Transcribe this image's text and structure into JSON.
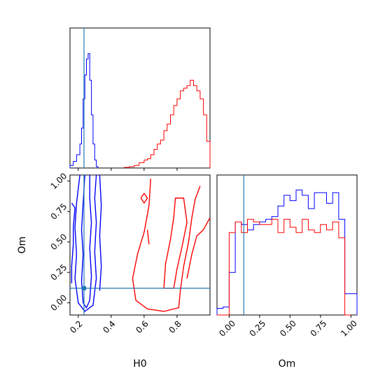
{
  "colors": {
    "blue": "#0000ff",
    "red": "#ff0000",
    "truth": "#1f77b4",
    "axis": "#000000"
  },
  "chart_data": [
    {
      "type": "histogram",
      "panel": "H0 marginal",
      "xlim": [
        0.15,
        1.0
      ],
      "series": [
        {
          "color": "blue",
          "bin_edges": [
            0.15,
            0.17,
            0.19,
            0.21,
            0.22,
            0.23,
            0.24,
            0.25,
            0.26,
            0.27,
            0.28,
            0.29,
            0.3,
            0.31,
            0.32
          ],
          "heights": [
            0.02,
            0.05,
            0.1,
            0.18,
            0.3,
            0.52,
            0.7,
            0.82,
            0.86,
            0.66,
            0.4,
            0.18,
            0.06,
            0.01
          ]
        },
        {
          "color": "red",
          "bin_edges": [
            0.48,
            0.51,
            0.54,
            0.57,
            0.6,
            0.62,
            0.64,
            0.66,
            0.68,
            0.7,
            0.72,
            0.74,
            0.76,
            0.78,
            0.8,
            0.82,
            0.84,
            0.86,
            0.88,
            0.9,
            0.92,
            0.94,
            0.96,
            0.98,
            1.0
          ],
          "heights": [
            0.005,
            0.01,
            0.02,
            0.04,
            0.06,
            0.07,
            0.1,
            0.14,
            0.18,
            0.21,
            0.28,
            0.33,
            0.4,
            0.47,
            0.52,
            0.58,
            0.6,
            0.62,
            0.66,
            0.62,
            0.58,
            0.52,
            0.4,
            0.2
          ]
        }
      ],
      "truth_x": 0.235,
      "xticks": [
        0.2,
        0.4,
        0.6,
        0.8
      ]
    },
    {
      "type": "contour",
      "panel": "H0 vs Om",
      "xlabel": "H0",
      "ylabel": "Om",
      "xlim": [
        0.15,
        1.0
      ],
      "ylim": [
        -0.1,
        1.05
      ],
      "xticks": [
        0.2,
        0.4,
        0.6,
        0.8
      ],
      "xtick_labels": [
        "0.2",
        "0.4",
        "0.6",
        "0.8"
      ],
      "yticks": [
        0.0,
        0.25,
        0.5,
        0.75,
        1.0
      ],
      "ytick_labels": [
        "0.00",
        "0.25",
        "0.50",
        "0.75",
        "1.00"
      ],
      "truth": {
        "x": 0.235,
        "y": 0.12
      },
      "contours": [
        {
          "color": "blue",
          "points": [
            [
              0.24,
              1.05
            ],
            [
              0.23,
              0.82
            ],
            [
              0.22,
              0.6
            ],
            [
              0.23,
              0.4
            ],
            [
              0.22,
              0.18
            ],
            [
              0.23,
              0.0
            ],
            [
              0.25,
              -0.04
            ],
            [
              0.27,
              0.02
            ],
            [
              0.28,
              0.22
            ],
            [
              0.27,
              0.45
            ],
            [
              0.28,
              0.66
            ],
            [
              0.27,
              0.86
            ],
            [
              0.27,
              1.05
            ]
          ]
        },
        {
          "color": "blue",
          "points": [
            [
              0.21,
              1.05
            ],
            [
              0.19,
              0.82
            ],
            [
              0.18,
              0.62
            ],
            [
              0.19,
              0.4
            ],
            [
              0.18,
              0.2
            ],
            [
              0.2,
              0.0
            ],
            [
              0.24,
              -0.07
            ],
            [
              0.29,
              -0.02
            ],
            [
              0.31,
              0.2
            ],
            [
              0.3,
              0.42
            ],
            [
              0.31,
              0.66
            ],
            [
              0.3,
              0.86
            ],
            [
              0.31,
              1.05
            ]
          ]
        },
        {
          "color": "blue",
          "points": [
            [
              0.16,
              0.82
            ],
            [
              0.18,
              0.78
            ],
            [
              0.17,
              0.62
            ],
            [
              0.17,
              0.48
            ],
            [
              0.16,
              0.3
            ],
            [
              0.16,
              0.16
            ]
          ]
        },
        {
          "color": "blue",
          "points": [
            [
              0.33,
              1.05
            ],
            [
              0.34,
              0.8
            ],
            [
              0.33,
              0.55
            ],
            [
              0.34,
              0.3
            ],
            [
              0.33,
              0.1
            ]
          ]
        },
        {
          "color": "red",
          "points": [
            [
              0.64,
              1.02
            ],
            [
              0.63,
              0.8
            ],
            [
              0.6,
              0.58
            ],
            [
              0.56,
              0.4
            ],
            [
              0.53,
              0.2
            ],
            [
              0.55,
              0.02
            ],
            [
              0.62,
              -0.05
            ],
            [
              0.72,
              -0.07
            ],
            [
              0.81,
              -0.04
            ],
            [
              0.82,
              0.1
            ],
            [
              0.84,
              0.3
            ],
            [
              0.87,
              0.5
            ],
            [
              0.89,
              0.7
            ],
            [
              0.91,
              0.85
            ],
            [
              0.94,
              0.96
            ]
          ]
        },
        {
          "color": "red",
          "points": [
            [
              0.72,
              0.12
            ],
            [
              0.73,
              0.32
            ],
            [
              0.76,
              0.52
            ],
            [
              0.78,
              0.7
            ],
            [
              0.79,
              0.86
            ],
            [
              0.84,
              0.86
            ],
            [
              0.86,
              0.66
            ],
            [
              0.83,
              0.46
            ],
            [
              0.8,
              0.28
            ],
            [
              0.78,
              0.12
            ],
            [
              0.72,
              0.12
            ]
          ]
        },
        {
          "color": "red",
          "points": [
            [
              0.86,
              0.2
            ],
            [
              0.89,
              0.4
            ],
            [
              0.92,
              0.55
            ],
            [
              0.96,
              0.6
            ],
            [
              1.0,
              0.7
            ]
          ]
        },
        {
          "color": "red",
          "points": [
            [
              0.58,
              0.86
            ],
            [
              0.6,
              0.9
            ],
            [
              0.62,
              0.86
            ],
            [
              0.6,
              0.82
            ],
            [
              0.58,
              0.86
            ]
          ]
        },
        {
          "color": "red",
          "points": [
            [
              0.62,
              0.6
            ],
            [
              0.63,
              0.48
            ]
          ]
        }
      ]
    },
    {
      "type": "histogram",
      "panel": "Om marginal",
      "xlabel": "Om",
      "xlim": [
        -0.1,
        1.05
      ],
      "xticks": [
        0.0,
        0.25,
        0.5,
        0.75,
        1.0
      ],
      "xtick_labels": [
        "0.00",
        "0.25",
        "0.50",
        "0.75",
        "1.00"
      ],
      "truth_x": 0.12,
      "series": [
        {
          "color": "blue",
          "bin_edges": [
            -0.1,
            -0.05,
            0.0,
            0.05,
            0.1,
            0.15,
            0.2,
            0.25,
            0.3,
            0.35,
            0.4,
            0.45,
            0.5,
            0.55,
            0.6,
            0.65,
            0.7,
            0.75,
            0.8,
            0.85,
            0.9,
            0.95,
            1.0,
            1.05
          ],
          "heights": [
            0.05,
            0.06,
            0.32,
            0.7,
            0.68,
            0.64,
            0.68,
            0.7,
            0.72,
            0.74,
            0.82,
            0.9,
            0.86,
            0.94,
            0.9,
            0.8,
            0.92,
            0.92,
            0.84,
            0.92,
            0.72,
            0.16,
            0.16
          ]
        },
        {
          "color": "red",
          "bin_edges": [
            -0.1,
            -0.05,
            0.0,
            0.05,
            0.1,
            0.15,
            0.2,
            0.25,
            0.3,
            0.35,
            0.4,
            0.45,
            0.5,
            0.55,
            0.6,
            0.65,
            0.7,
            0.75,
            0.8,
            0.85,
            0.9,
            0.95,
            1.0
          ],
          "heights": [
            0.0,
            0.0,
            0.62,
            0.7,
            0.62,
            0.72,
            0.7,
            0.68,
            0.68,
            0.72,
            0.62,
            0.72,
            0.66,
            0.62,
            0.72,
            0.64,
            0.62,
            0.68,
            0.64,
            0.7,
            0.58,
            0.0
          ]
        }
      ]
    }
  ]
}
